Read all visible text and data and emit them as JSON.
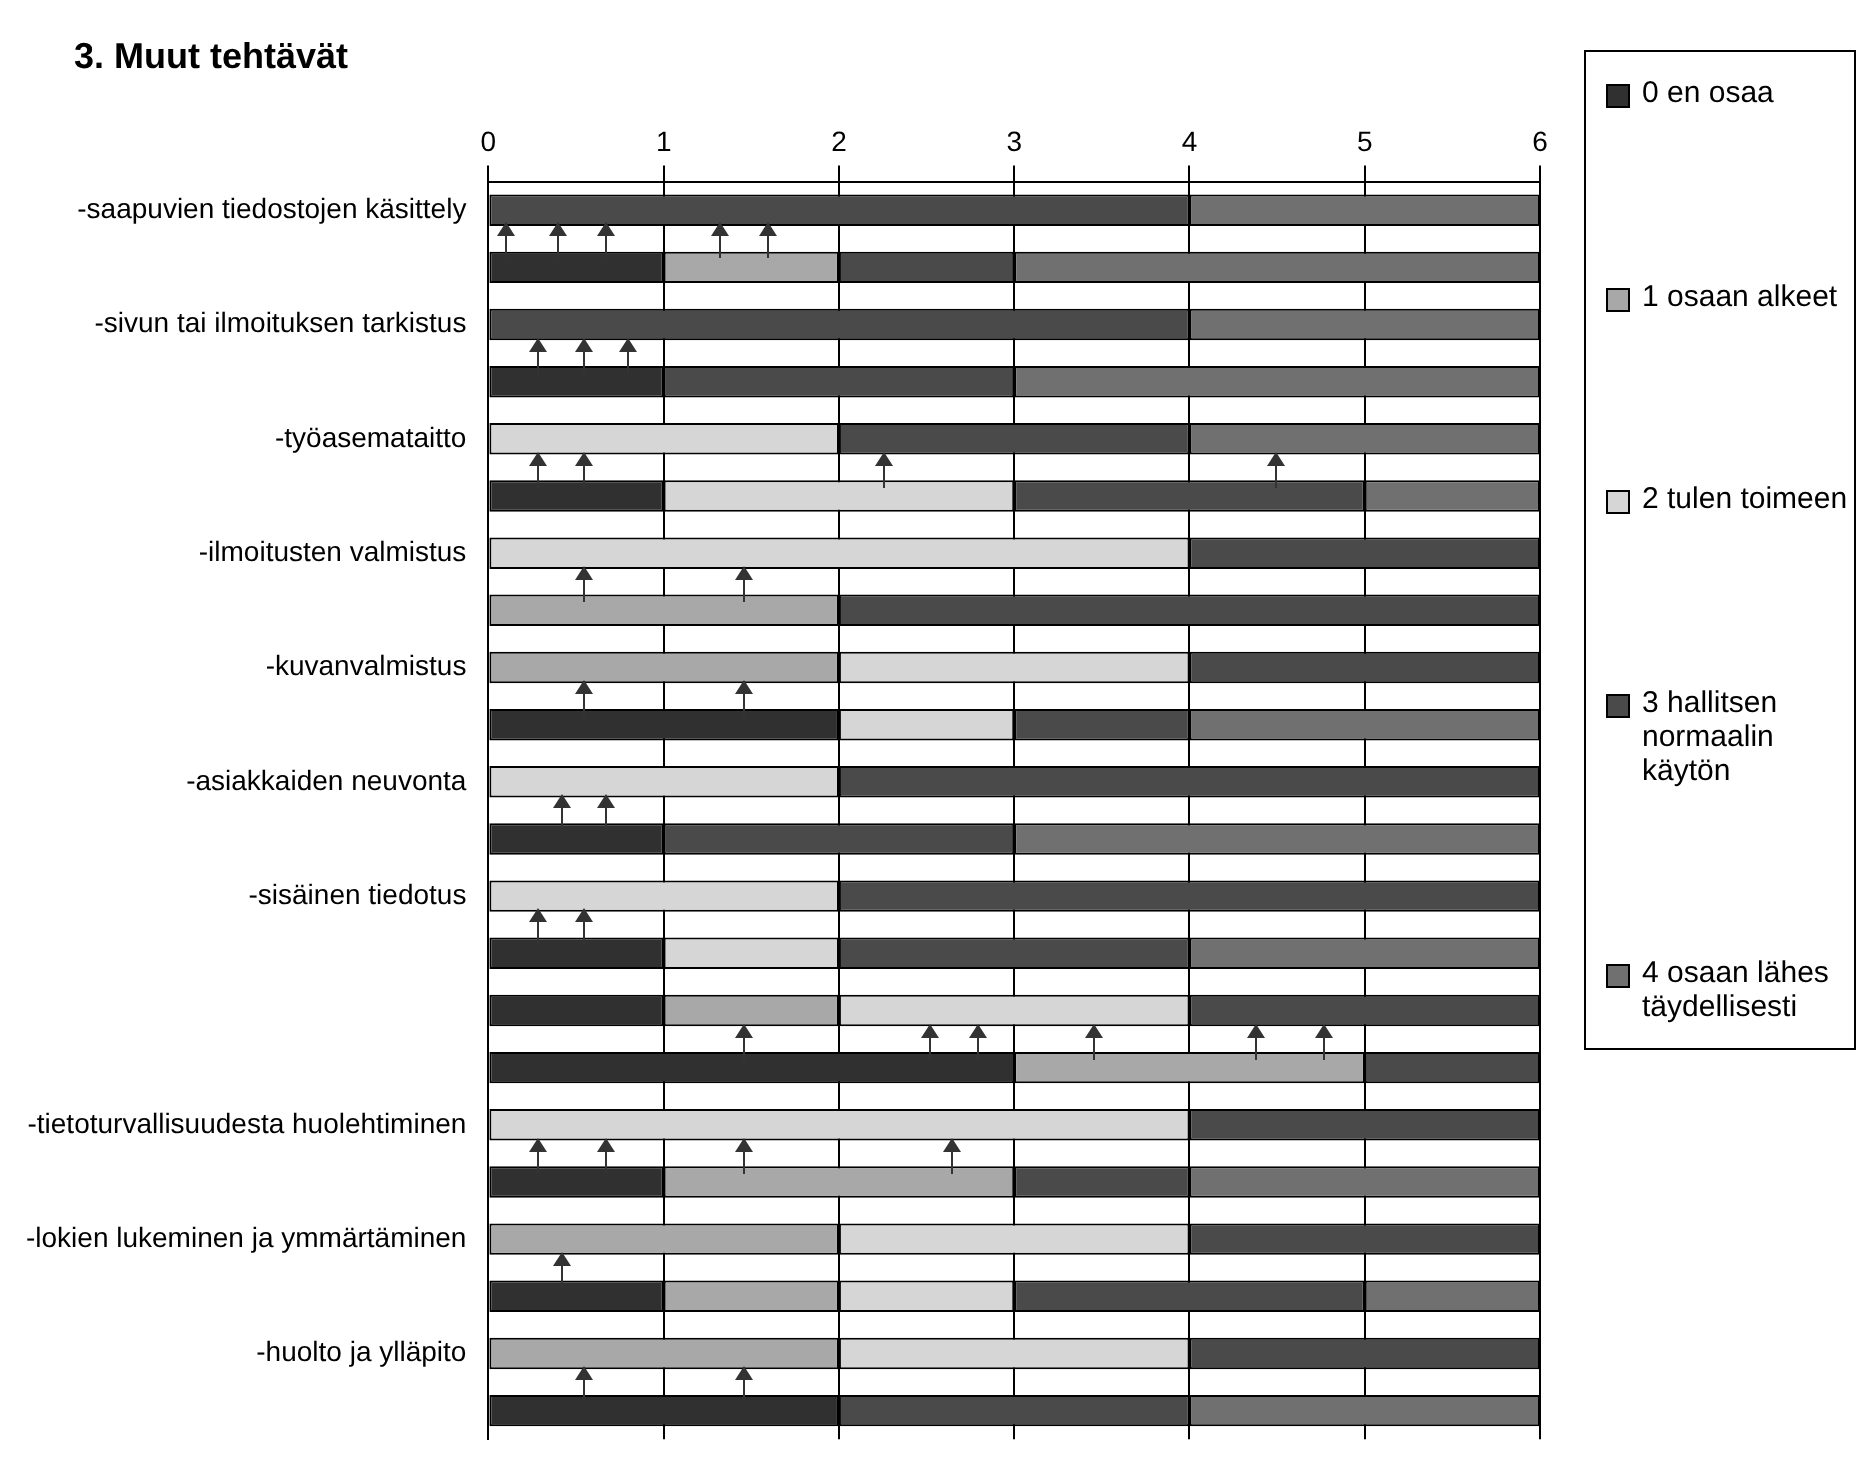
{
  "chart_data": {
    "type": "bar",
    "orientation": "horizontal",
    "stacked": true,
    "title": "3. Muut tehtävät",
    "categories": [
      "-saapuvien tiedostojen käsittely",
      null,
      "-sivun tai ilmoituksen tarkistus",
      null,
      "-työasemataitto",
      null,
      "-ilmoitusten valmistus",
      null,
      "-kuvanvalmistus",
      null,
      "-asiakkaiden neuvonta",
      null,
      "-sisäinen tiedotus",
      null,
      null,
      null,
      "-tietoturvallisuudesta huolehtiminen",
      null,
      "-lokien lukeminen ja ymmärtäminen",
      null,
      "-huolto ja ylläpito",
      null
    ],
    "series": [
      {
        "name": "0 en osaa",
        "color": "#303030",
        "values": [
          0,
          1,
          0,
          1,
          0,
          1,
          0,
          0,
          0,
          2,
          0,
          1,
          0,
          1,
          1,
          3,
          0,
          1,
          0,
          1,
          0,
          2
        ]
      },
      {
        "name": "1 osaan alkeet",
        "color": "#a8a8a8",
        "values": [
          0,
          1,
          0,
          0,
          0,
          0,
          0,
          2,
          2,
          0,
          0,
          0,
          0,
          0,
          1,
          2,
          0,
          2,
          2,
          1,
          2,
          0
        ]
      },
      {
        "name": "2 tulen toimeen",
        "color": "#d6d6d6",
        "values": [
          0,
          0,
          0,
          0,
          2,
          2,
          4,
          0,
          2,
          1,
          2,
          0,
          2,
          1,
          2,
          0,
          4,
          0,
          2,
          1,
          2,
          0
        ]
      },
      {
        "name": "3 hallitsen normaalin käytön",
        "color": "#4a4a4a",
        "values": [
          4,
          1,
          4,
          2,
          2,
          2,
          2,
          4,
          2,
          1,
          4,
          2,
          4,
          2,
          2,
          1,
          2,
          1,
          2,
          2,
          2,
          2
        ]
      },
      {
        "name": "4 osaan lähes täydellisesti",
        "color": "#707070",
        "values": [
          2,
          3,
          2,
          3,
          2,
          1,
          0,
          0,
          0,
          2,
          0,
          3,
          0,
          2,
          0,
          0,
          0,
          2,
          0,
          1,
          0,
          2
        ]
      }
    ],
    "xlim": [
      0,
      6
    ],
    "xticks": [
      0,
      1,
      2,
      3,
      4,
      5,
      6
    ],
    "grid": "x",
    "legend": "right"
  }
}
